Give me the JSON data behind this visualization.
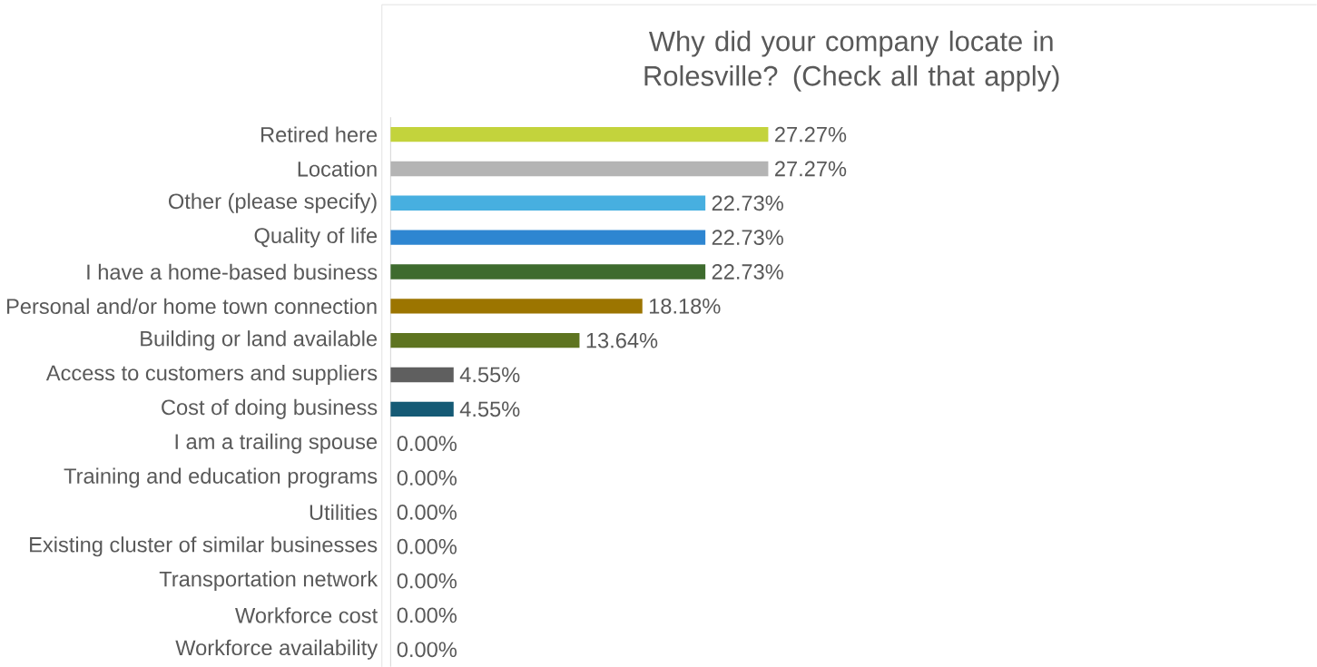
{
  "chart_data": {
    "type": "bar",
    "orientation": "horizontal",
    "title": "Why did your company locate in Rolesville? (Check all that apply)",
    "categories": [
      "Retired here",
      "Location",
      "Other (please specify)",
      "Quality of life",
      "I have a home-based business",
      "Personal and/or home town connection",
      "Building or land available",
      "Access to customers and suppliers",
      "Cost of doing business",
      "I am a trailing spouse",
      "Training and education programs",
      "Utilities",
      "Existing cluster of similar businesses",
      "Transportation network",
      "Workforce cost",
      "Workforce availability"
    ],
    "values": [
      27.27,
      27.27,
      22.73,
      22.73,
      22.73,
      18.18,
      13.64,
      4.55,
      4.55,
      0,
      0,
      0,
      0,
      0,
      0,
      0
    ],
    "value_labels": [
      "27.27%",
      "27.27%",
      "22.73%",
      "22.73%",
      "22.73%",
      "18.18%",
      "13.64%",
      "4.55%",
      "4.55%",
      "0.00%",
      "0.00%",
      "0.00%",
      "0.00%",
      "0.00%",
      "0.00%",
      "0.00%"
    ],
    "colors": [
      "#c3d33c",
      "#b4b4b4",
      "#47afe0",
      "#2e86d1",
      "#3e6b2e",
      "#9c7500",
      "#5e7420",
      "#5f5f5f",
      "#155a75",
      "#a5a5a5",
      "#a5a5a5",
      "#a5a5a5",
      "#a5a5a5",
      "#a5a5a5",
      "#a5a5a5",
      "#a5a5a5"
    ]
  }
}
